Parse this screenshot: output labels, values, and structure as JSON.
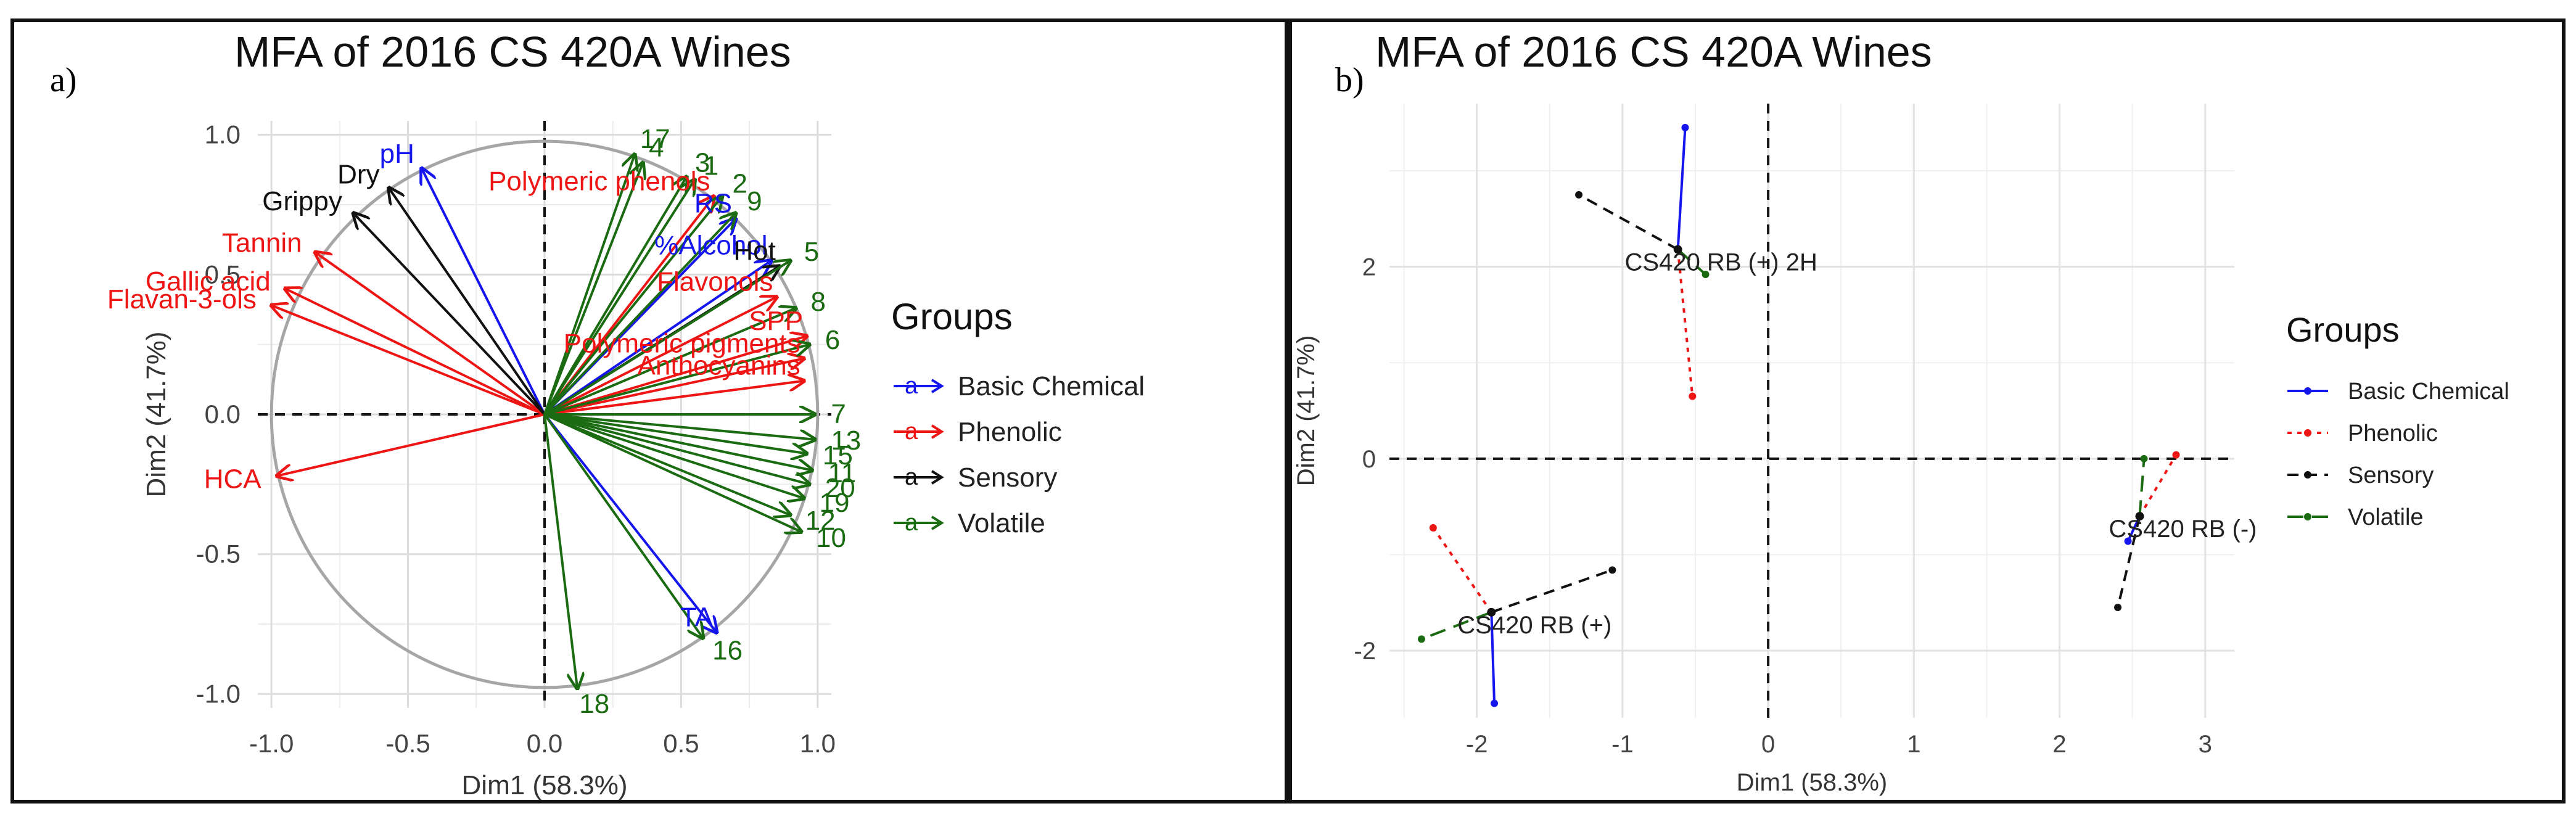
{
  "chart_data": [
    {
      "panel_label": "a)",
      "type": "scatter",
      "subtype": "correlation-circle",
      "title": "MFA of 2016 CS 420A Wines",
      "xlabel": "Dim1 (58.3%)",
      "ylabel": "Dim2 (41.7%)",
      "xlim": [
        -1.05,
        1.05
      ],
      "ylim": [
        -1.05,
        1.05
      ],
      "x_ticks": [
        -1.0,
        -0.5,
        0.0,
        0.5,
        1.0
      ],
      "y_ticks": [
        -1.0,
        -0.5,
        0.0,
        0.5,
        1.0
      ],
      "x_tick_labels": [
        "-1.0",
        "-0.5",
        "0.0",
        "0.5",
        "1.0"
      ],
      "y_tick_labels": [
        "-1.0",
        "-0.5",
        "0.0",
        "0.5",
        "1.0"
      ],
      "grid": true,
      "legend_title": "Groups",
      "legend_position": "right",
      "groups": [
        {
          "name": "Basic Chemical",
          "color": "#1515ee",
          "legend_glyph": "a"
        },
        {
          "name": "Phenolic",
          "color": "#ee1515",
          "legend_glyph": "a"
        },
        {
          "name": "Sensory",
          "color": "#111111",
          "legend_glyph": "a"
        },
        {
          "name": "Volatile",
          "color": "#1b6b12",
          "legend_glyph": "a"
        }
      ],
      "vectors": [
        {
          "label": "pH",
          "group": "Basic Chemical",
          "x": -0.45,
          "y": 0.88
        },
        {
          "label": "RS",
          "group": "Basic Chemical",
          "x": 0.7,
          "y": 0.7
        },
        {
          "label": "%Alcohol",
          "group": "Basic Chemical",
          "x": 0.83,
          "y": 0.55
        },
        {
          "label": "TA",
          "group": "Basic Chemical",
          "x": 0.63,
          "y": -0.78
        },
        {
          "label": "Tannin",
          "group": "Phenolic",
          "x": -0.84,
          "y": 0.58
        },
        {
          "label": "Gallic acid",
          "group": "Phenolic",
          "x": -0.95,
          "y": 0.45
        },
        {
          "label": "Flavan-3-ols",
          "group": "Phenolic",
          "x": -1.0,
          "y": 0.39
        },
        {
          "label": "HCA",
          "group": "Phenolic",
          "x": -0.98,
          "y": -0.22
        },
        {
          "label": "Polymeric phenols",
          "group": "Phenolic",
          "x": 0.62,
          "y": 0.78
        },
        {
          "label": "Flavonols",
          "group": "Phenolic",
          "x": 0.85,
          "y": 0.42
        },
        {
          "label": "SPP",
          "group": "Phenolic",
          "x": 0.96,
          "y": 0.28
        },
        {
          "label": "Polymeric pigments",
          "group": "Phenolic",
          "x": 0.95,
          "y": 0.2
        },
        {
          "label": "Anthocyanins",
          "group": "Phenolic",
          "x": 0.95,
          "y": 0.12
        },
        {
          "label": "Dry",
          "group": "Sensory",
          "x": -0.57,
          "y": 0.81
        },
        {
          "label": "Grippy",
          "group": "Sensory",
          "x": -0.7,
          "y": 0.72
        },
        {
          "label": "Hot",
          "group": "Sensory",
          "x": 0.86,
          "y": 0.53
        },
        {
          "label": "17",
          "group": "Volatile",
          "x": 0.33,
          "y": 0.93
        },
        {
          "label": "4",
          "group": "Volatile",
          "x": 0.36,
          "y": 0.9
        },
        {
          "label": "3",
          "group": "Volatile",
          "x": 0.52,
          "y": 0.85
        },
        {
          "label": "1",
          "group": "Volatile",
          "x": 0.55,
          "y": 0.84
        },
        {
          "label": "2",
          "group": "Volatile",
          "x": 0.65,
          "y": 0.78
        },
        {
          "label": "9",
          "group": "Volatile",
          "x": 0.7,
          "y": 0.72
        },
        {
          "label": "5",
          "group": "Volatile",
          "x": 0.9,
          "y": 0.55
        },
        {
          "label": "8",
          "group": "Volatile",
          "x": 0.92,
          "y": 0.38
        },
        {
          "label": "6",
          "group": "Volatile",
          "x": 0.97,
          "y": 0.25
        },
        {
          "label": "7",
          "group": "Volatile",
          "x": 0.99,
          "y": 0.0
        },
        {
          "label": "13",
          "group": "Volatile",
          "x": 0.99,
          "y": -0.09
        },
        {
          "label": "15",
          "group": "Volatile",
          "x": 0.96,
          "y": -0.14
        },
        {
          "label": "11",
          "group": "Volatile",
          "x": 0.98,
          "y": -0.2
        },
        {
          "label": "20",
          "group": "Volatile",
          "x": 0.97,
          "y": -0.25
        },
        {
          "label": "19",
          "group": "Volatile",
          "x": 0.95,
          "y": -0.3
        },
        {
          "label": "12",
          "group": "Volatile",
          "x": 0.9,
          "y": -0.36
        },
        {
          "label": "10",
          "group": "Volatile",
          "x": 0.94,
          "y": -0.42
        },
        {
          "label": "16",
          "group": "Volatile",
          "x": 0.58,
          "y": -0.8
        },
        {
          "label": "18",
          "group": "Volatile",
          "x": 0.12,
          "y": -0.98
        }
      ]
    },
    {
      "panel_label": "b)",
      "type": "scatter",
      "subtype": "partial-individuals",
      "title": "MFA of 2016 CS 420A Wines",
      "xlabel": "Dim1 (58.3%)",
      "ylabel": "Dim2 (41.7%)",
      "xlim": [
        -2.6,
        3.2
      ],
      "ylim": [
        -2.7,
        3.7
      ],
      "x_ticks": [
        -2,
        -1,
        0,
        1,
        2,
        3
      ],
      "y_ticks": [
        -2,
        0,
        2
      ],
      "x_tick_labels": [
        "-2",
        "-1",
        "0",
        "1",
        "2",
        "3"
      ],
      "y_tick_labels": [
        "-2",
        "0",
        "2"
      ],
      "grid": true,
      "legend_title": "Groups",
      "legend_position": "right",
      "groups": [
        {
          "name": "Basic Chemical",
          "color": "#1515ee",
          "dash": "solid"
        },
        {
          "name": "Phenolic",
          "color": "#ee1515",
          "dash": "dotted"
        },
        {
          "name": "Sensory",
          "color": "#111111",
          "dash": "dashed"
        },
        {
          "name": "Volatile",
          "color": "#1b6b12",
          "dash": "longdash"
        }
      ],
      "individuals": [
        {
          "label": "CS420 RB (+) 2H",
          "center": [
            -0.62,
            2.18
          ],
          "partials": {
            "Basic Chemical": [
              -0.57,
              3.45
            ],
            "Phenolic": [
              -0.52,
              0.65
            ],
            "Sensory": [
              -1.3,
              2.75
            ],
            "Volatile": [
              -0.43,
              1.92
            ]
          }
        },
        {
          "label": "CS420 RB (+)",
          "center": [
            -1.9,
            -1.6
          ],
          "partials": {
            "Basic Chemical": [
              -1.88,
              -2.55
            ],
            "Phenolic": [
              -2.3,
              -0.72
            ],
            "Sensory": [
              -1.07,
              -1.16
            ],
            "Volatile": [
              -2.38,
              -1.88
            ]
          }
        },
        {
          "label": "CS420 RB (-)",
          "center": [
            2.55,
            -0.6
          ],
          "partials": {
            "Basic Chemical": [
              2.47,
              -0.86
            ],
            "Phenolic": [
              2.8,
              0.04
            ],
            "Sensory": [
              2.4,
              -1.55
            ],
            "Volatile": [
              2.58,
              0.0
            ]
          }
        }
      ]
    }
  ]
}
